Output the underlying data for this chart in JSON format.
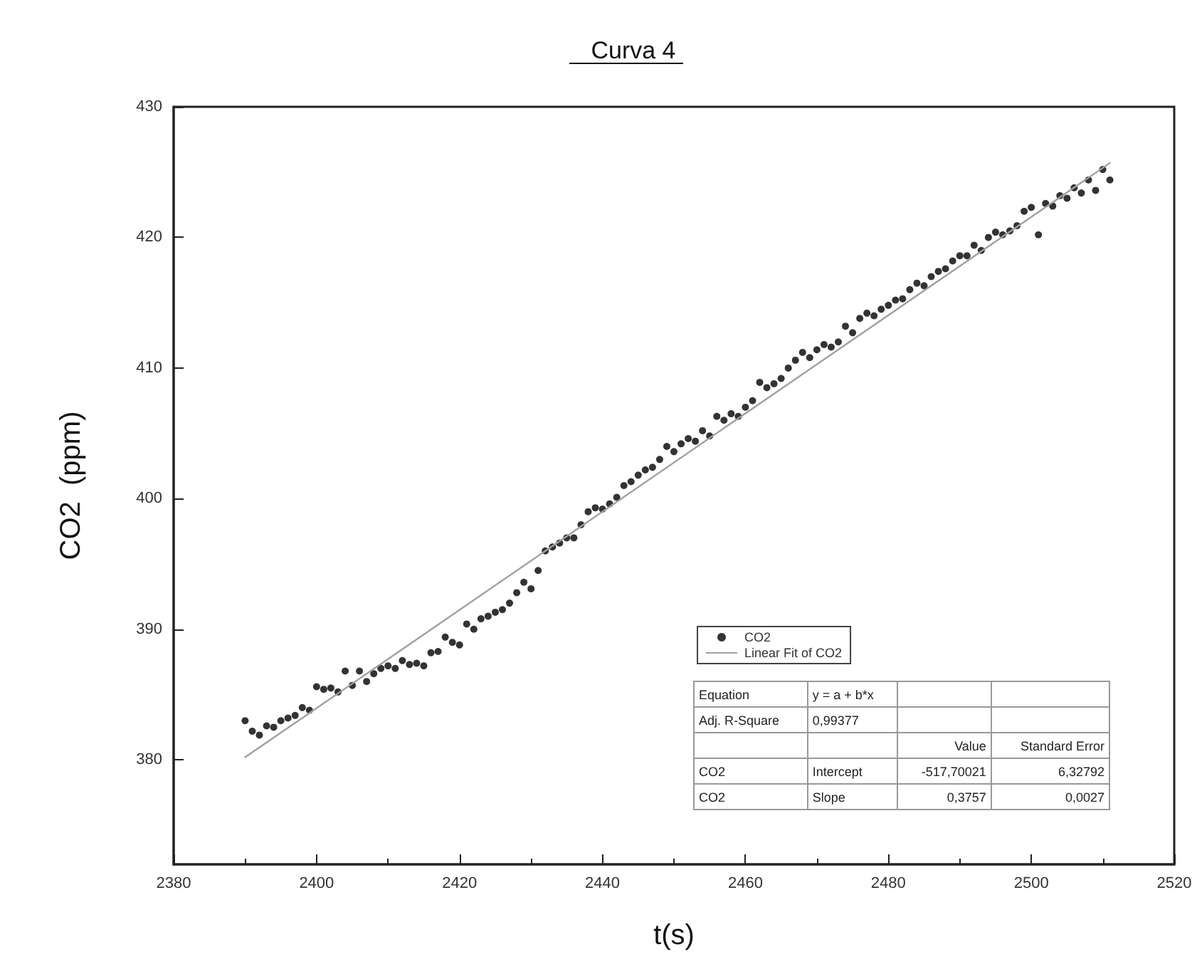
{
  "chart_data": {
    "type": "scatter",
    "title": "Curva 4",
    "xlabel": "t(s)",
    "ylabel": "CO2  (ppm)",
    "xlim": [
      2380,
      2520
    ],
    "xticks": [
      2380,
      2400,
      2420,
      2440,
      2460,
      2480,
      2500,
      2520
    ],
    "ylim": [
      372,
      430
    ],
    "yticks": [
      380,
      390,
      400,
      410,
      420,
      430
    ],
    "grid": false,
    "legend": "bottom right",
    "marker": "circle",
    "series": [
      {
        "name": "CO2",
        "color": "#000000",
        "x": [
          2390,
          2391,
          2392,
          2393,
          2394,
          2395,
          2396,
          2397,
          2398,
          2399,
          2400,
          2401,
          2402,
          2403,
          2404,
          2405,
          2406,
          2407,
          2408,
          2409,
          2410,
          2411,
          2412,
          2413,
          2414,
          2415,
          2416,
          2417,
          2418,
          2419,
          2420,
          2421,
          2422,
          2423,
          2424,
          2425,
          2426,
          2427,
          2428,
          2429,
          2430,
          2431,
          2432,
          2433,
          2434,
          2435,
          2436,
          2437,
          2438,
          2439,
          2440,
          2441,
          2442,
          2443,
          2444,
          2445,
          2446,
          2447,
          2448,
          2449,
          2450,
          2451,
          2452,
          2453,
          2454,
          2455,
          2456,
          2457,
          2458,
          2459,
          2460,
          2461,
          2462,
          2463,
          2464,
          2465,
          2466,
          2467,
          2468,
          2469,
          2470,
          2471,
          2472,
          2473,
          2474,
          2475,
          2476,
          2477,
          2478,
          2479,
          2480,
          2481,
          2482,
          2483,
          2484,
          2485,
          2486,
          2487,
          2488,
          2489,
          2490,
          2491,
          2492,
          2493,
          2494,
          2495,
          2496,
          2497,
          2498,
          2499,
          2500,
          2501,
          2502,
          2503,
          2504,
          2505,
          2506,
          2507,
          2508,
          2509,
          2510,
          2511
        ],
        "values": [
          383.0,
          382.2,
          381.9,
          382.6,
          382.5,
          383.0,
          383.2,
          383.4,
          384.0,
          383.8,
          385.6,
          385.4,
          385.5,
          385.2,
          386.8,
          385.7,
          386.8,
          386.0,
          386.6,
          387.0,
          387.2,
          387.0,
          387.6,
          387.3,
          387.4,
          387.2,
          388.2,
          388.3,
          389.4,
          389.0,
          388.8,
          390.4,
          390.0,
          390.8,
          391.0,
          391.3,
          391.5,
          392.0,
          392.8,
          393.6,
          393.1,
          394.5,
          396.0,
          396.3,
          396.6,
          397.0,
          397.0,
          398.0,
          399.0,
          399.3,
          399.2,
          399.6,
          400.1,
          401.0,
          401.3,
          401.8,
          402.2,
          402.4,
          403.0,
          404.0,
          403.6,
          404.2,
          404.6,
          404.4,
          405.2,
          404.8,
          406.3,
          406.0,
          406.5,
          406.3,
          407.0,
          407.5,
          408.9,
          408.5,
          408.8,
          409.2,
          410.0,
          410.6,
          411.2,
          410.8,
          411.4,
          411.8,
          411.6,
          412.0,
          413.2,
          412.7,
          413.8,
          414.2,
          414.0,
          414.5,
          414.8,
          415.2,
          415.3,
          416.0,
          416.5,
          416.3,
          417.0,
          417.4,
          417.6,
          418.2,
          418.6,
          418.6,
          419.4,
          419.0,
          420.0,
          420.4,
          420.2,
          420.5,
          420.9,
          422.0,
          422.3,
          420.2,
          422.6,
          422.4,
          423.2,
          423.0,
          423.8,
          423.4,
          424.4,
          423.6,
          425.2,
          424.4
        ]
      },
      {
        "name": "Linear Fit of CO2",
        "type": "line",
        "color": "#a0a0a0",
        "marker": "none",
        "line_style": "solid",
        "x": [
          2390,
          2511
        ],
        "values": [
          380.2,
          425.7
        ]
      }
    ],
    "annotations": [
      "Equation",
      "y = a + b*x",
      "Adj. R-Square",
      "0,99377",
      "Value",
      "Standard Error",
      "CO2",
      "Intercept",
      "-517,70021",
      "6,32792",
      "CO2",
      "Slope",
      "0,3757",
      "0,0027"
    ]
  }
}
